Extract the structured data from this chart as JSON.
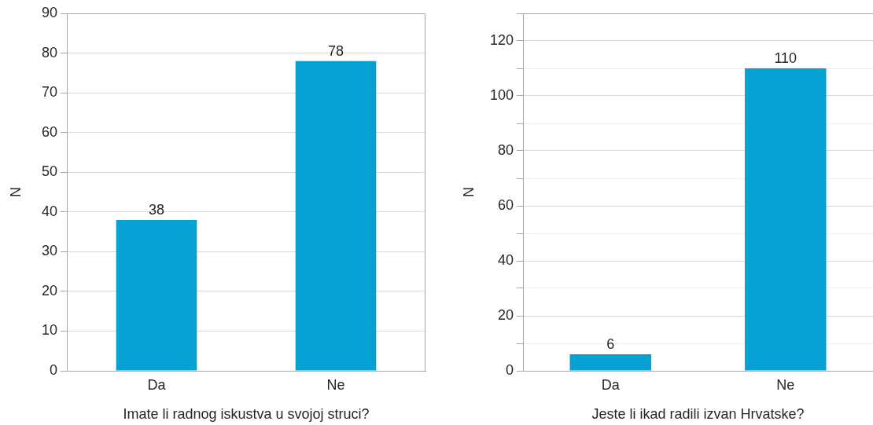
{
  "chart_data": [
    {
      "type": "bar",
      "categories": [
        "Da",
        "Ne"
      ],
      "values": [
        38,
        78
      ],
      "color": "#06a1d3",
      "xlabel": "Imate li radnog iskustva u svojoj struci?",
      "ylabel": "N",
      "ylim": [
        0,
        90
      ],
      "yticks": [
        0,
        10,
        20,
        30,
        40,
        50,
        60,
        70,
        80,
        90
      ],
      "grid": "y",
      "data_labels": true
    },
    {
      "type": "bar",
      "categories": [
        "Da",
        "Ne"
      ],
      "values": [
        6,
        110
      ],
      "color": "#06a1d3",
      "xlabel": "Jeste li ikad radili izvan Hrvatske?",
      "ylabel": "N",
      "ylim": [
        0,
        130
      ],
      "yticks": [
        0,
        {
          "value": 10,
          "label": null
        },
        20,
        {
          "value": 30,
          "label": null
        },
        40,
        {
          "value": 50,
          "label": null
        },
        60,
        {
          "value": 70,
          "label": null
        },
        80,
        {
          "value": 90,
          "label": null
        },
        100,
        {
          "value": 110,
          "label": null
        },
        120,
        {
          "value": 130,
          "label": null
        }
      ],
      "grid": "y",
      "data_labels": true
    }
  ]
}
